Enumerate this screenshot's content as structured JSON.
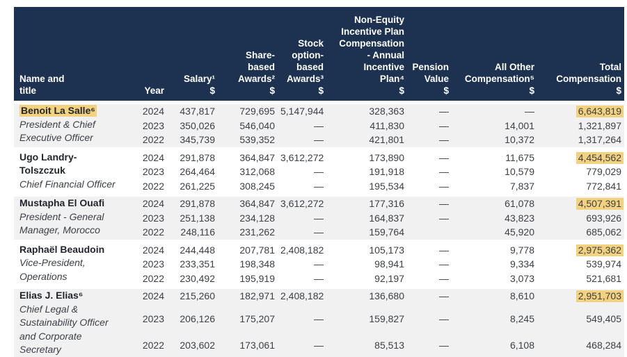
{
  "colors": {
    "header_bg": "#1d3150",
    "highlight": "#f2d27f",
    "group_alt_bg": "#f1f1f2",
    "header_text": "#ffffff",
    "body_text": "#3c4046"
  },
  "table": {
    "header": {
      "columns": [
        {
          "key": "name",
          "label": "Name and\ntitle"
        },
        {
          "key": "year",
          "label": "Year"
        },
        {
          "key": "salary",
          "label": "Salary¹\n$"
        },
        {
          "key": "share",
          "label": "Share-\nbased\nAwards²\n$"
        },
        {
          "key": "option",
          "label": "Stock\noption-\nbased\nAwards³\n$"
        },
        {
          "key": "neip",
          "label": "Non-Equity\nIncentive Plan\nCompensation\n- Annual\nIncentive\nPlan⁴\n$"
        },
        {
          "key": "pension",
          "label": "Pension\nValue\n$"
        },
        {
          "key": "other",
          "label": "All Other\nCompensation⁵\n$"
        },
        {
          "key": "total",
          "label": "Total\nCompensation\n$"
        }
      ]
    },
    "executives": [
      {
        "name": "Benoit La Salle⁶",
        "name_highlight": true,
        "title": "President & Chief Executive Officer",
        "years": [
          {
            "year": "2024",
            "salary": "437,817",
            "share": "729,695",
            "option": "5,147,944",
            "neip": "328,363",
            "pension": "—",
            "other": "—",
            "total": "6,643,819",
            "total_highlight": true
          },
          {
            "year": "2023",
            "salary": "350,026",
            "share": "546,040",
            "option": "—",
            "neip": "411,830",
            "pension": "—",
            "other": "14,001",
            "total": "1,321,897",
            "total_highlight": false
          },
          {
            "year": "2022",
            "salary": "345,739",
            "share": "539,352",
            "option": "—",
            "neip": "421,801",
            "pension": "—",
            "other": "10,372",
            "total": "1,317,264",
            "total_highlight": false
          }
        ]
      },
      {
        "name": "Ugo Landry-Tolszczuk",
        "name_highlight": false,
        "title": "Chief Financial Officer",
        "years": [
          {
            "year": "2024",
            "salary": "291,878",
            "share": "364,847",
            "option": "3,612,272",
            "neip": "173,890",
            "pension": "—",
            "other": "11,675",
            "total": "4,454,562",
            "total_highlight": true
          },
          {
            "year": "2023",
            "salary": "264,464",
            "share": "312,068",
            "option": "—",
            "neip": "191,918",
            "pension": "—",
            "other": "10,579",
            "total": "779,029",
            "total_highlight": false
          },
          {
            "year": "2022",
            "salary": "261,225",
            "share": "308,245",
            "option": "—",
            "neip": "195,534",
            "pension": "—",
            "other": "7,837",
            "total": "772,841",
            "total_highlight": false
          }
        ]
      },
      {
        "name": "Mustapha El Ouafi",
        "name_highlight": false,
        "title": "President - General Manager, Morocco",
        "years": [
          {
            "year": "2024",
            "salary": "291,878",
            "share": "364,847",
            "option": "3,612,272",
            "neip": "177,316",
            "pension": "—",
            "other": "61,078",
            "total": "4,507,391",
            "total_highlight": true
          },
          {
            "year": "2023",
            "salary": "251,138",
            "share": "234,128",
            "option": "—",
            "neip": "164,837",
            "pension": "—",
            "other": "43,823",
            "total": "693,926",
            "total_highlight": false
          },
          {
            "year": "2022",
            "salary": "248,116",
            "share": "231,262",
            "option": "—",
            "neip": "159,764",
            "pension": "",
            "other": "45,920",
            "total": "685,062",
            "total_highlight": false
          }
        ]
      },
      {
        "name": "Raphaël Beaudoin",
        "name_highlight": false,
        "title": "Vice-President, Operations",
        "years": [
          {
            "year": "2024",
            "salary": "244,448",
            "share": "207,781",
            "option": "2,408,182",
            "neip": "105,173",
            "pension": "—",
            "other": "9,778",
            "total": "2,975,362",
            "total_highlight": true
          },
          {
            "year": "2023",
            "salary": "233,351",
            "share": "198,348",
            "option": "—",
            "neip": "98,941",
            "pension": "—",
            "other": "9,334",
            "total": "539,974",
            "total_highlight": false
          },
          {
            "year": "2022",
            "salary": "230,492",
            "share": "195,919",
            "option": "—",
            "neip": "92,197",
            "pension": "—",
            "other": "3,073",
            "total": "521,681",
            "total_highlight": false
          }
        ]
      },
      {
        "name": "Elias J. Elias⁶",
        "name_highlight": false,
        "title": "Chief Legal & Sustainability Officer and Corporate Secretary",
        "years": [
          {
            "year": "2024",
            "salary": "215,260",
            "share": "182,971",
            "option": "2,408,182",
            "neip": "136,680",
            "pension": "—",
            "other": "8,610",
            "total": "2,951,703",
            "total_highlight": true
          },
          {
            "year": "2023",
            "salary": "206,126",
            "share": "175,207",
            "option": "—",
            "neip": "159,827",
            "pension": "—",
            "other": "8,245",
            "total": "549,405",
            "total_highlight": false
          },
          {
            "year": "2022",
            "salary": "203,602",
            "share": "173,061",
            "option": "—",
            "neip": "85,513",
            "pension": "—",
            "other": "6,108",
            "total": "468,284",
            "total_highlight": false
          }
        ]
      }
    ]
  }
}
